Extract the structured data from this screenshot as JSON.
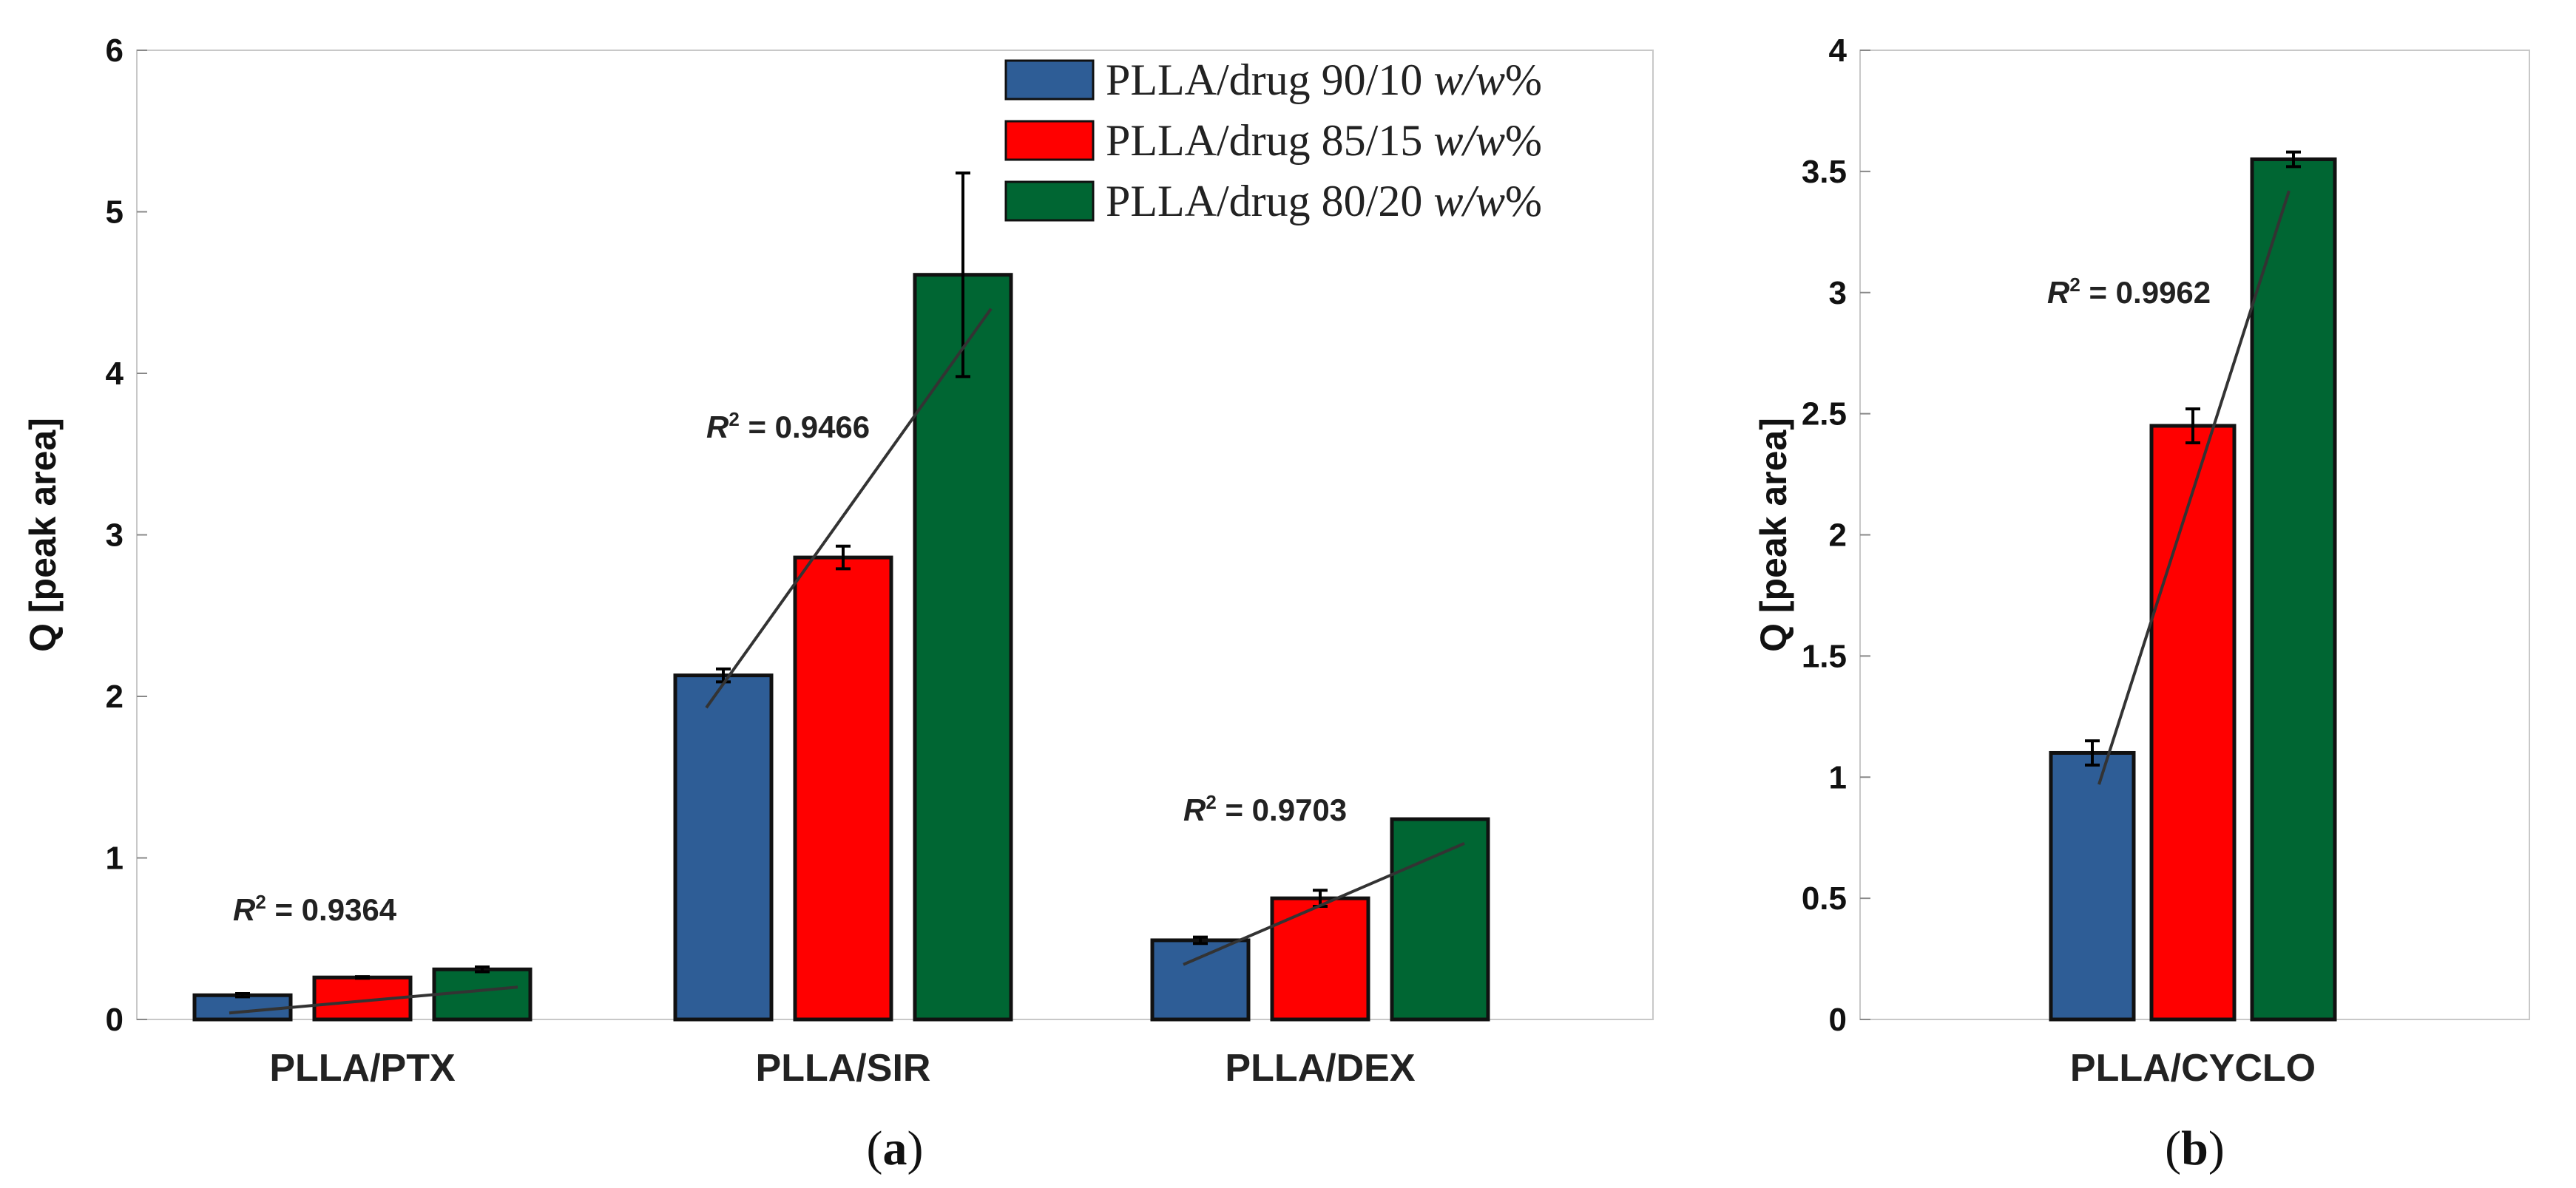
{
  "chart_data": [
    {
      "type": "bar",
      "panel_label": "a",
      "categories": [
        "PLLA/PTX",
        "PLLA/SIR",
        "PLLA/DEX"
      ],
      "ylabel": "Q [peak area]",
      "ylim": [
        0,
        6
      ],
      "yticks": [
        "0",
        "1",
        "2",
        "3",
        "4",
        "5",
        "6"
      ],
      "series": [
        {
          "name": "PLLA/drug 90/10",
          "unit": "w/w",
          "suffix": "%",
          "color": "#2e5d96",
          "values": [
            0.15,
            2.13,
            0.49
          ],
          "errors": [
            0.01,
            0.04,
            0.02
          ]
        },
        {
          "name": "PLLA/drug 85/15",
          "unit": "w/w",
          "suffix": "%",
          "color": "#ff0000",
          "values": [
            0.26,
            2.86,
            0.75
          ],
          "errors": [
            0.005,
            0.07,
            0.05
          ]
        },
        {
          "name": "PLLA/drug 80/20",
          "unit": "w/w",
          "suffix": "%",
          "color": "#006633",
          "values": [
            0.31,
            4.61,
            1.24
          ],
          "errors": [
            0.015,
            0.63,
            0.0
          ]
        }
      ],
      "fits": [
        {
          "label_prefix": "R",
          "label_sup": "2",
          "label_value": "= 0.9364",
          "y_start": 0.04,
          "y_end": 0.2
        },
        {
          "label_prefix": "R",
          "label_sup": "2",
          "label_value": "= 0.9466",
          "y_start": 1.93,
          "y_end": 4.4
        },
        {
          "label_prefix": "R",
          "label_sup": "2",
          "label_value": "= 0.9703",
          "y_start": 0.34,
          "y_end": 1.09
        }
      ]
    },
    {
      "type": "bar",
      "panel_label": "b",
      "categories": [
        "PLLA/CYCLO"
      ],
      "ylabel": "Q [peak area]",
      "ylim": [
        0,
        4
      ],
      "yticks": [
        "0",
        "0.5",
        "1",
        "1.5",
        "2",
        "2.5",
        "3",
        "3.5",
        "4"
      ],
      "series": [
        {
          "name": "PLLA/drug 90/10",
          "color": "#2e5d96",
          "values": [
            1.1
          ],
          "errors": [
            0.05
          ]
        },
        {
          "name": "PLLA/drug 85/15",
          "color": "#ff0000",
          "values": [
            2.45
          ],
          "errors": [
            0.07
          ]
        },
        {
          "name": "PLLA/drug 80/20",
          "color": "#006633",
          "values": [
            3.55
          ],
          "errors": [
            0.03
          ]
        }
      ],
      "fits": [
        {
          "label_prefix": "R",
          "label_sup": "2",
          "label_value": "= 0.9962",
          "y_start": 0.97,
          "y_end": 3.42
        }
      ]
    }
  ]
}
